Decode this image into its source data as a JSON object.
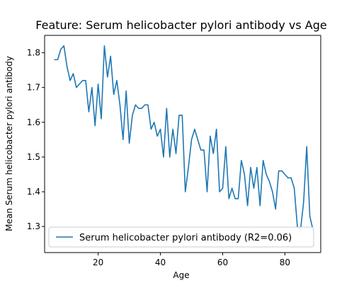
{
  "chart_data": {
    "type": "line",
    "title": "Feature: Serum helicobacter pylori antibody vs Age",
    "xlabel": "Age",
    "ylabel": "Mean Serum helicobacter pylori antibody",
    "xlim": [
      2.8,
      91.5
    ],
    "ylim": [
      1.225,
      1.85
    ],
    "x_ticks": [
      20,
      40,
      60,
      80
    ],
    "y_ticks": [
      1.3,
      1.4,
      1.5,
      1.6,
      1.7,
      1.8
    ],
    "x_tick_labels": [
      "20",
      "40",
      "60",
      "80"
    ],
    "y_tick_labels": [
      "1.3",
      "1.4",
      "1.5",
      "1.6",
      "1.7",
      "1.8"
    ],
    "legend_position": "lower left",
    "grid": false,
    "series": [
      {
        "name": "Serum helicobacter pylori antibody (R2=0.06)",
        "color": "#1f77b4",
        "x": [
          6,
          7,
          8,
          9,
          10,
          11,
          12,
          13,
          14,
          15,
          16,
          17,
          18,
          19,
          20,
          21,
          22,
          23,
          24,
          25,
          26,
          27,
          28,
          29,
          30,
          31,
          32,
          33,
          34,
          35,
          36,
          37,
          38,
          39,
          40,
          41,
          42,
          43,
          44,
          45,
          46,
          47,
          48,
          49,
          50,
          51,
          52,
          53,
          54,
          55,
          56,
          57,
          58,
          59,
          60,
          61,
          62,
          63,
          64,
          65,
          66,
          67,
          68,
          69,
          70,
          71,
          72,
          73,
          74,
          75,
          76,
          77,
          78,
          79,
          80,
          81,
          82,
          83,
          84,
          85,
          86,
          87,
          88,
          89
        ],
        "y": [
          1.78,
          1.78,
          1.81,
          1.82,
          1.76,
          1.72,
          1.74,
          1.7,
          1.71,
          1.72,
          1.72,
          1.63,
          1.7,
          1.59,
          1.71,
          1.61,
          1.82,
          1.73,
          1.79,
          1.68,
          1.72,
          1.65,
          1.55,
          1.69,
          1.54,
          1.62,
          1.65,
          1.64,
          1.64,
          1.65,
          1.65,
          1.58,
          1.6,
          1.56,
          1.58,
          1.5,
          1.64,
          1.5,
          1.58,
          1.51,
          1.62,
          1.62,
          1.4,
          1.47,
          1.55,
          1.58,
          1.55,
          1.52,
          1.52,
          1.4,
          1.56,
          1.51,
          1.58,
          1.4,
          1.41,
          1.53,
          1.38,
          1.41,
          1.38,
          1.38,
          1.49,
          1.45,
          1.36,
          1.47,
          1.41,
          1.47,
          1.36,
          1.49,
          1.45,
          1.43,
          1.4,
          1.35,
          1.46,
          1.46,
          1.45,
          1.44,
          1.44,
          1.41,
          1.3,
          1.29,
          1.37,
          1.53,
          1.33,
          1.29
        ]
      }
    ]
  }
}
